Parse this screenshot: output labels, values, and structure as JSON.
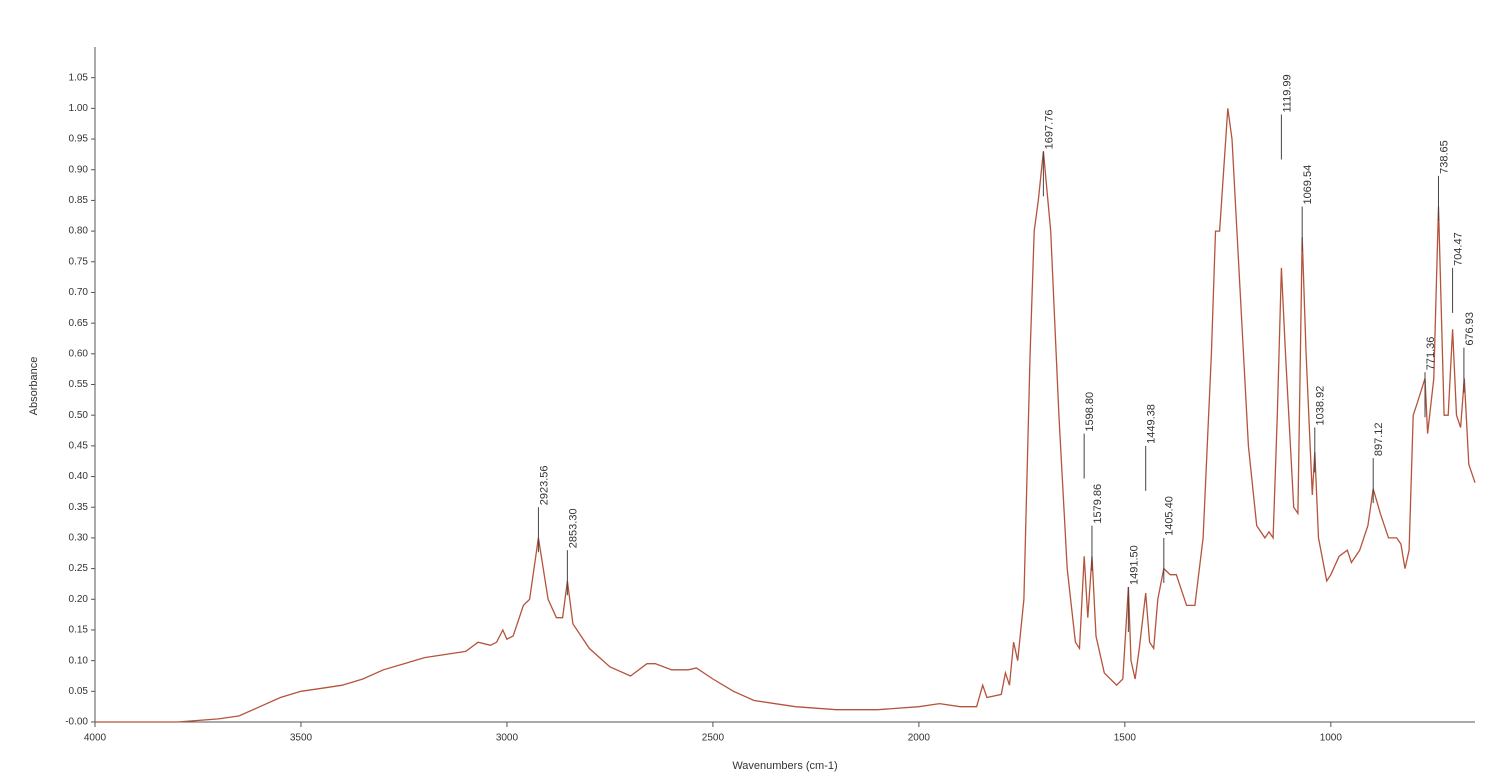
{
  "chart_data": {
    "type": "line",
    "y_label": "Absorbance",
    "x_label": "Wavenumbers (cm-1)",
    "xlim": [
      4000,
      650
    ],
    "ylim": [
      0,
      1.1
    ],
    "xticks": [
      4000,
      3500,
      3000,
      2500,
      2000,
      1500,
      1000
    ],
    "yticks": [
      {
        "value": 0,
        "label": "-0.00"
      },
      {
        "value": 0.05,
        "label": "0.05"
      },
      {
        "value": 0.1,
        "label": "0.10"
      },
      {
        "value": 0.15,
        "label": "0.15"
      },
      {
        "value": 0.2,
        "label": "0.20"
      },
      {
        "value": 0.25,
        "label": "0.25"
      },
      {
        "value": 0.3,
        "label": "0.30"
      },
      {
        "value": 0.35,
        "label": "0.35"
      },
      {
        "value": 0.4,
        "label": "0.40"
      },
      {
        "value": 0.45,
        "label": "0.45"
      },
      {
        "value": 0.5,
        "label": "0.50"
      },
      {
        "value": 0.55,
        "label": "0.55"
      },
      {
        "value": 0.6,
        "label": "0.60"
      },
      {
        "value": 0.65,
        "label": "0.65"
      },
      {
        "value": 0.7,
        "label": "0.70"
      },
      {
        "value": 0.75,
        "label": "0.75"
      },
      {
        "value": 0.8,
        "label": "0.80"
      },
      {
        "value": 0.85,
        "label": "0.85"
      },
      {
        "value": 0.9,
        "label": "0.90"
      },
      {
        "value": 0.95,
        "label": "0.95"
      },
      {
        "value": 1,
        "label": "1.00"
      },
      {
        "value": 1.05,
        "label": "1.05"
      }
    ],
    "color": "#b5533c",
    "x": [
      4000,
      3800,
      3700,
      3650,
      3600,
      3550,
      3500,
      3450,
      3400,
      3350,
      3300,
      3250,
      3200,
      3150,
      3100,
      3070,
      3040,
      3025,
      3010,
      3000,
      2985,
      2960,
      2945,
      2923.56,
      2900,
      2880,
      2865,
      2853.3,
      2840,
      2800,
      2750,
      2700,
      2660,
      2640,
      2600,
      2560,
      2540,
      2500,
      2450,
      2400,
      2300,
      2200,
      2100,
      2000,
      1950,
      1900,
      1860,
      1845,
      1835,
      1800,
      1790,
      1780,
      1770,
      1760,
      1745,
      1730,
      1720,
      1710,
      1697.76,
      1680,
      1660,
      1640,
      1620,
      1610,
      1598.8,
      1590,
      1579.86,
      1570,
      1550,
      1520,
      1505,
      1491.5,
      1485,
      1475,
      1465,
      1449.38,
      1440,
      1430,
      1420,
      1405.4,
      1390,
      1375,
      1350,
      1330,
      1310,
      1290,
      1280,
      1270,
      1260,
      1250,
      1240,
      1220,
      1200,
      1180,
      1160,
      1150,
      1140,
      1130,
      1119.99,
      1110,
      1090,
      1080,
      1069.54,
      1060,
      1045,
      1038.92,
      1030,
      1010,
      1000,
      980,
      960,
      950,
      930,
      910,
      897.12,
      880,
      860,
      840,
      830,
      820,
      810,
      800,
      790,
      771.36,
      765,
      750,
      738.65,
      725,
      715,
      704.47,
      695,
      685,
      676,
      665,
      650
    ],
    "values": [
      0,
      0,
      0.005,
      0.01,
      0.025,
      0.04,
      0.05,
      0.055,
      0.06,
      0.07,
      0.085,
      0.095,
      0.105,
      0.11,
      0.115,
      0.13,
      0.125,
      0.13,
      0.15,
      0.135,
      0.14,
      0.19,
      0.2,
      0.3,
      0.2,
      0.17,
      0.17,
      0.23,
      0.16,
      0.12,
      0.09,
      0.075,
      0.095,
      0.095,
      0.085,
      0.085,
      0.088,
      0.07,
      0.05,
      0.035,
      0.025,
      0.02,
      0.02,
      0.025,
      0.03,
      0.025,
      0.025,
      0.06,
      0.04,
      0.045,
      0.08,
      0.06,
      0.13,
      0.1,
      0.2,
      0.6,
      0.8,
      0.85,
      0.93,
      0.8,
      0.5,
      0.25,
      0.13,
      0.12,
      0.27,
      0.17,
      0.27,
      0.14,
      0.08,
      0.06,
      0.07,
      0.22,
      0.1,
      0.07,
      0.12,
      0.21,
      0.13,
      0.12,
      0.2,
      0.25,
      0.24,
      0.24,
      0.19,
      0.19,
      0.3,
      0.6,
      0.8,
      0.8,
      0.9,
      1,
      0.95,
      0.7,
      0.45,
      0.32,
      0.3,
      0.31,
      0.3,
      0.5,
      0.74,
      0.6,
      0.35,
      0.34,
      0.79,
      0.6,
      0.37,
      0.44,
      0.3,
      0.23,
      0.24,
      0.27,
      0.28,
      0.26,
      0.28,
      0.32,
      0.38,
      0.34,
      0.3,
      0.3,
      0.29,
      0.25,
      0.28,
      0.5,
      0.52,
      0.56,
      0.47,
      0.56,
      0.84,
      0.5,
      0.5,
      0.64,
      0.5,
      0.48,
      0.56,
      0.42,
      0.39
    ],
    "peaks": [
      {
        "x": 2923.56,
        "y": 0.35,
        "label": "2923.56"
      },
      {
        "x": 2853.3,
        "y": 0.28,
        "label": "2853.30"
      },
      {
        "x": 1697.76,
        "y": 0.93,
        "label": "1697.76"
      },
      {
        "x": 1598.8,
        "y": 0.47,
        "label": "1598.80"
      },
      {
        "x": 1579.86,
        "y": 0.32,
        "label": "1579.86"
      },
      {
        "x": 1491.5,
        "y": 0.22,
        "label": "1491.50"
      },
      {
        "x": 1449.38,
        "y": 0.45,
        "label": "1449.38"
      },
      {
        "x": 1405.4,
        "y": 0.3,
        "label": "1405.40"
      },
      {
        "x": 1119.99,
        "y": 0.99,
        "label": "1119.99"
      },
      {
        "x": 1069.54,
        "y": 0.84,
        "label": "1069.54"
      },
      {
        "x": 1038.92,
        "y": 0.48,
        "label": "1038.92"
      },
      {
        "x": 897.12,
        "y": 0.43,
        "label": "897.12"
      },
      {
        "x": 771.36,
        "y": 0.57,
        "label": "771.36"
      },
      {
        "x": 738.65,
        "y": 0.89,
        "label": "738.65"
      },
      {
        "x": 704.47,
        "y": 0.74,
        "label": "704.47"
      },
      {
        "x": 676.93,
        "y": 0.61,
        "label": "676.93"
      }
    ]
  }
}
